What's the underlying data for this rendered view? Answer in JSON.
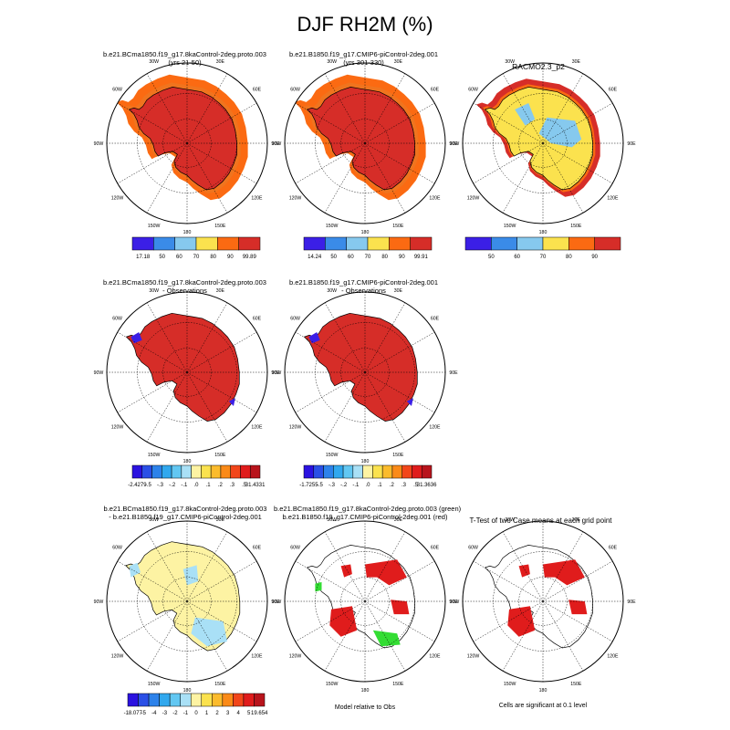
{
  "figure": {
    "title": "DJF RH2M (%)",
    "lon_labels": [
      "30W",
      "30E",
      "60W",
      "60E",
      "90W",
      "90E",
      "120W",
      "120E",
      "150W",
      "150E",
      "180"
    ]
  },
  "panels": [
    {
      "id": "p1",
      "title1": "b.e21.BCma1850.f19_g17.8kaControl-2deg.proto.003",
      "title2": "(yrs 21-50)"
    },
    {
      "id": "p2",
      "title1": "b.e21.B1850.f19_g17.CMIP6-piControl-2deg.001",
      "title2": "(yrs 301-330)"
    },
    {
      "id": "p3",
      "title1": "RACMO2.3_p2",
      "title2": ""
    },
    {
      "id": "p4",
      "title1": "b.e21.BCma1850.f19_g17.8kaControl-2deg.proto.003",
      "title2": "- Observations"
    },
    {
      "id": "p5",
      "title1": "b.e21.B1850.f19_g17.CMIP6-piControl-2deg.001",
      "title2": "- Observations"
    },
    {
      "id": "p7",
      "title1": "b.e21.BCma1850.f19_g17.8kaControl-2deg.proto.003",
      "title2": "- b.e21.B1850.f19_g17.CMIP6-piControl-2deg.001"
    },
    {
      "id": "p8",
      "title1": "b.e21.BCma1850.f19_g17.8kaControl-2deg.proto.003 (green)",
      "title2": "b.e21.B1850.f19_g17.CMIP6-piControl-2deg.001 (red)"
    },
    {
      "id": "p9",
      "title1": "T-Test of two Case means at each grid point",
      "title2": ""
    }
  ],
  "notes": {
    "p8": "Model relative to Obs",
    "p9": "Cells are significant at 0.1 level"
  },
  "colorbars": [
    {
      "id": "cb1",
      "colors": [
        "#3b1fe6",
        "#3a8be8",
        "#86c9ee",
        "#fbe24e",
        "#fb6a12",
        "#d62d28"
      ],
      "labels": [
        "17.18",
        "50",
        "60",
        "70",
        "80",
        "90",
        "99.89"
      ],
      "ends": true
    },
    {
      "id": "cb2",
      "colors": [
        "#3b1fe6",
        "#3a8be8",
        "#86c9ee",
        "#fbe24e",
        "#fb6a12",
        "#d62d28"
      ],
      "labels": [
        "14.24",
        "50",
        "60",
        "70",
        "80",
        "90",
        "99.91"
      ],
      "ends": true
    },
    {
      "id": "cb3",
      "colors": [
        "#3b1fe6",
        "#3a8be8",
        "#86c9ee",
        "#fbe24e",
        "#fb6a12",
        "#d62d28"
      ],
      "labels": [
        "50",
        "60",
        "70",
        "80",
        "90"
      ],
      "ends": false
    },
    {
      "id": "cb4",
      "colors": [
        "#2b12e0",
        "#2a4fe6",
        "#2d82ea",
        "#31a8ee",
        "#62c7f2",
        "#a9e0f6",
        "#fdf3a3",
        "#fbe24e",
        "#fbbb2c",
        "#fa8a18",
        "#f2461a",
        "#e01c1c",
        "#b8141c"
      ],
      "labels": [
        "-2.4279",
        "-.5",
        "-.3",
        "-.2",
        "-.1",
        ".0",
        ".1",
        ".2",
        ".3",
        ".5",
        "31.4331"
      ],
      "ends": true
    },
    {
      "id": "cb5",
      "colors": [
        "#2b12e0",
        "#2a4fe6",
        "#2d82ea",
        "#31a8ee",
        "#62c7f2",
        "#a9e0f6",
        "#fdf3a3",
        "#fbe24e",
        "#fbbb2c",
        "#fa8a18",
        "#f2461a",
        "#e01c1c",
        "#b8141c"
      ],
      "labels": [
        "-1.7255",
        "-.5",
        "-.3",
        "-.2",
        "-.1",
        ".0",
        ".1",
        ".2",
        ".3",
        ".5",
        "31.3636"
      ],
      "ends": true
    },
    {
      "id": "cb7",
      "colors": [
        "#2b12e0",
        "#2a4fe6",
        "#2d82ea",
        "#31a8ee",
        "#62c7f2",
        "#a9e0f6",
        "#fdf3a3",
        "#fbe24e",
        "#fbbb2c",
        "#fa8a18",
        "#f2461a",
        "#e01c1c",
        "#b8141c"
      ],
      "labels": [
        "-18.077",
        "-5",
        "-4",
        "-3",
        "-2",
        "-1",
        "0",
        "1",
        "2",
        "3",
        "4",
        "5",
        "19.654"
      ],
      "ends": true
    }
  ],
  "chart_data": {
    "type": "heatmap",
    "title": "DJF RH2M (%)",
    "variable": "RH2M",
    "units": "%",
    "season": "DJF",
    "projection": "south polar stereographic",
    "meridian_labels": [
      "180",
      "150W",
      "120W",
      "90W",
      "60W",
      "30W",
      "30E",
      "60E",
      "90E",
      "120E",
      "150E"
    ],
    "panels": [
      {
        "name": "8ka control (yrs 21-50)",
        "min": 17.18,
        "max": 99.89,
        "levels": [
          50,
          60,
          70,
          80,
          90
        ]
      },
      {
        "name": "piControl (yrs 301-330)",
        "min": 14.24,
        "max": 99.91,
        "levels": [
          50,
          60,
          70,
          80,
          90
        ]
      },
      {
        "name": "RACMO2.3_p2",
        "levels": [
          50,
          60,
          70,
          80,
          90
        ]
      },
      {
        "name": "8ka control - Observations",
        "min": -2.4279,
        "max": 31.4331,
        "levels": [
          -0.5,
          -0.3,
          -0.2,
          -0.1,
          0,
          0.1,
          0.2,
          0.3,
          0.5
        ]
      },
      {
        "name": "piControl - Observations",
        "min": -1.7255,
        "max": 31.3636,
        "levels": [
          -0.5,
          -0.3,
          -0.2,
          -0.1,
          0,
          0.1,
          0.2,
          0.3,
          0.5
        ]
      },
      {
        "name": "8ka control - piControl",
        "min": -18.077,
        "max": 19.654,
        "levels": [
          -5,
          -4,
          -3,
          -2,
          -1,
          0,
          1,
          2,
          3,
          4,
          5
        ]
      },
      {
        "name": "Model relative to Obs",
        "legend": {
          "green": "8ka control",
          "red": "piControl"
        }
      },
      {
        "name": "T-Test significance",
        "significance_level": 0.1
      }
    ]
  }
}
